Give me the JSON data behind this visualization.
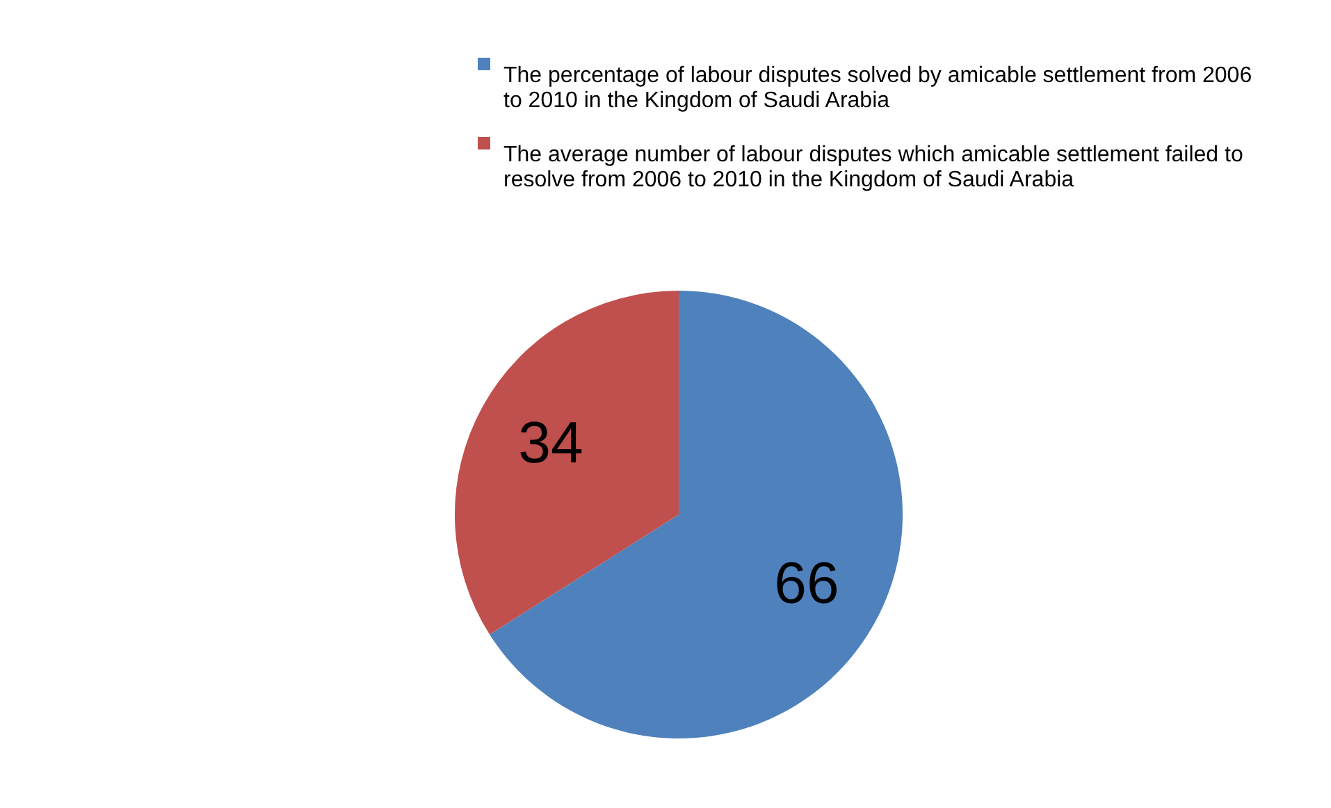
{
  "chart_data": {
    "type": "pie",
    "categories": [
      "The percentage of  labour disputes solved by  amicable settlement  from 2006 to 2010 in the Kingdom of Saudi Arabia",
      "The average number of labour disputes which amicable settlement failed to resolve from 2006 to 2010 in the Kingdom of Saudi Arabia"
    ],
    "values": [
      66,
      34
    ],
    "colors": [
      "#4f81bd",
      "#c0504d"
    ],
    "data_labels": true,
    "legend": "top"
  }
}
